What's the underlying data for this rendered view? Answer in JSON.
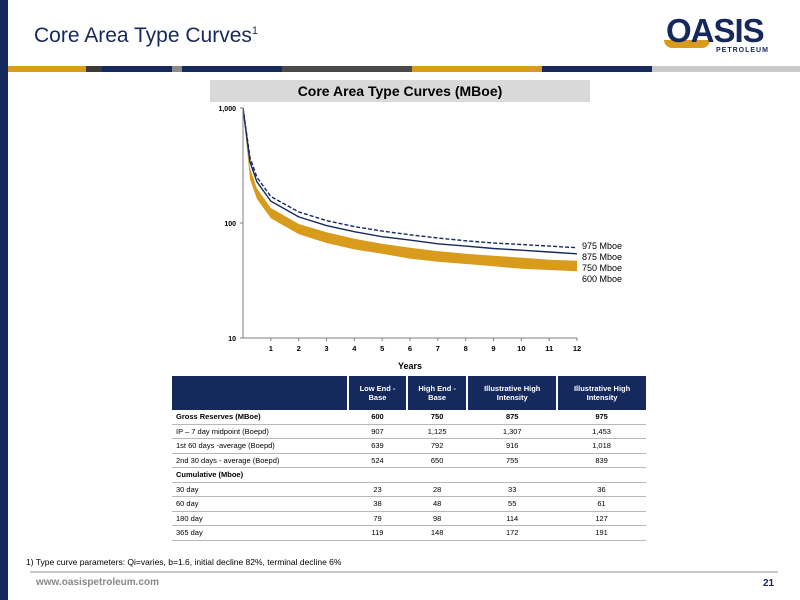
{
  "slide": {
    "title": "Core Area Type Curves",
    "title_sup": "1",
    "logo_main": "OASIS",
    "logo_sub": "PETROLEUM",
    "footer_url": "www.oasispetroleum.com",
    "page_number": "21",
    "footnote": "1)    Type curve parameters: Qi=varies, b=1.6, initial decline 82%, terminal decline 6%"
  },
  "colors": {
    "navy": "#16295c",
    "gold": "#d99b1b",
    "grey_header": "#d9d9d9"
  },
  "chart_data": {
    "type": "line",
    "title": "Core Area Type Curves (MBoe)",
    "xlabel": "Years",
    "ylabel": "",
    "y_scale": "log",
    "xlim": [
      0,
      12
    ],
    "ylim": [
      10,
      1000
    ],
    "x_ticks": [
      "1",
      "2",
      "3",
      "4",
      "5",
      "6",
      "7",
      "8",
      "9",
      "10",
      "11",
      "12"
    ],
    "y_ticks": [
      "10",
      "100",
      "1,000"
    ],
    "grid": false,
    "x": [
      0,
      0.25,
      0.5,
      1,
      2,
      3,
      4,
      5,
      6,
      7,
      8,
      9,
      10,
      11,
      12
    ],
    "series": [
      {
        "name": "975 Mboe",
        "color": "#16295c",
        "style": "dashed",
        "values": [
          1000,
          370,
          250,
          170,
          125,
          105,
          93,
          85,
          79,
          74,
          70,
          67,
          65,
          63,
          61
        ]
      },
      {
        "name": "875 Mboe",
        "color": "#16295c",
        "style": "solid",
        "values": [
          1000,
          340,
          228,
          155,
          113,
          95,
          84,
          76,
          71,
          66,
          63,
          60,
          58,
          56,
          54
        ]
      },
      {
        "name": "750 Mboe",
        "color": "#d99b1b",
        "style": "band-top",
        "values": [
          1000,
          300,
          200,
          135,
          98,
          83,
          73,
          66,
          61,
          57,
          54,
          52,
          50,
          48,
          47
        ]
      },
      {
        "name": "600 Mboe",
        "color": "#d99b1b",
        "style": "band-bottom",
        "values": [
          1000,
          240,
          162,
          110,
          80,
          67,
          59,
          54,
          49,
          46,
          44,
          42,
          40,
          39,
          38
        ]
      }
    ],
    "legend_placement": "right of curve ends"
  },
  "table": {
    "headers": [
      "",
      "Low End - Base",
      "High End - Base",
      "Illustrative High Intensity",
      "Illustrative High Intensity"
    ],
    "rows": [
      {
        "label": "Gross Reserves (MBoe)",
        "values": [
          "600",
          "750",
          "875",
          "975"
        ],
        "bold": true
      },
      {
        "label": "IP – 7 day midpoint (Boepd)",
        "values": [
          "907",
          "1,125",
          "1,307",
          "1,453"
        ],
        "bold": false
      },
      {
        "label": "1st 60 days -average (Boepd)",
        "values": [
          "639",
          "792",
          "916",
          "1,018"
        ],
        "bold": false
      },
      {
        "label": "2nd 30 days - average (Boepd)",
        "values": [
          "524",
          "650",
          "755",
          "839"
        ],
        "bold": false
      },
      {
        "label": "Cumulative (Mboe)",
        "values": [
          "",
          "",
          "",
          ""
        ],
        "bold": true
      },
      {
        "label": "30 day",
        "values": [
          "23",
          "28",
          "33",
          "36"
        ],
        "bold": false
      },
      {
        "label": "60 day",
        "values": [
          "38",
          "48",
          "55",
          "61"
        ],
        "bold": false
      },
      {
        "label": "180 day",
        "values": [
          "79",
          "98",
          "114",
          "127"
        ],
        "bold": false
      },
      {
        "label": "365 day",
        "values": [
          "119",
          "148",
          "172",
          "191"
        ],
        "bold": false
      }
    ]
  }
}
